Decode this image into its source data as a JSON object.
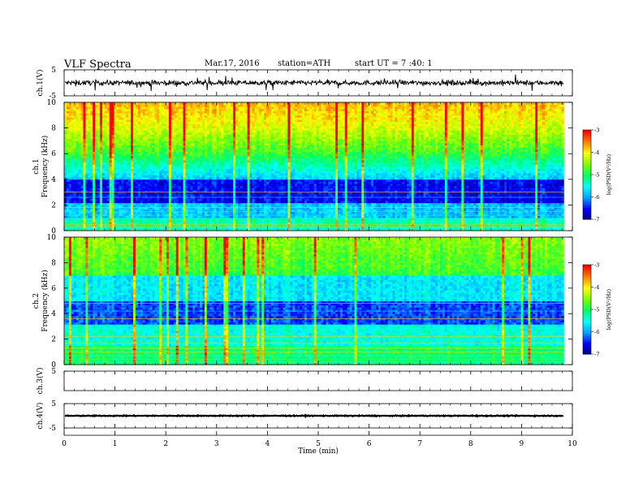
{
  "header": {
    "title": "VLF  Spectra",
    "date": "Mar.17, 2016",
    "station": "station=ATH",
    "start": "start  UT  =   7  :40: 1"
  },
  "chart_data": [
    {
      "id": "ch1_waveform",
      "type": "line",
      "ylabel": "ch.1(V)",
      "yticks": [
        "5",
        "-5"
      ],
      "ylim": [
        -5,
        5
      ],
      "baseline": 0,
      "color": "#000000"
    },
    {
      "id": "ch1_spectrogram",
      "type": "heatmap",
      "ylabel_line1": "ch.1",
      "ylabel_line2": "Frequency (kHz)",
      "yticks": [
        "0",
        "2",
        "4",
        "6",
        "8",
        "10"
      ],
      "ylim": [
        0,
        10
      ],
      "colorbar": {
        "ticks": [
          "-3",
          "-4",
          "-5",
          "-6",
          "-7"
        ],
        "label": "log(PSD(V²/Hz)"
      }
    },
    {
      "id": "ch2_spectrogram",
      "type": "heatmap",
      "ylabel_line1": "ch.2",
      "ylabel_line2": "Frequency (kHz)",
      "yticks": [
        "0",
        "2",
        "4",
        "6",
        "8",
        "10"
      ],
      "ylim": [
        0,
        10
      ],
      "colorbar": {
        "ticks": [
          "-3",
          "-4",
          "-5",
          "-6",
          "-7"
        ],
        "label": "log(PSD(V²/Hz)"
      }
    },
    {
      "id": "ch3_waveform",
      "type": "line",
      "ylabel": "ch.3(V)",
      "yticks": [
        "5"
      ],
      "ylim": [
        -5,
        5
      ]
    },
    {
      "id": "ch4_waveform",
      "type": "line",
      "ylabel": "ch.4(V)",
      "yticks": [
        "5",
        "-5"
      ],
      "ylim": [
        -5,
        5
      ],
      "baseline": 0,
      "color": "#000000"
    }
  ],
  "xaxis": {
    "label": "Time (min)",
    "ticks": [
      "0",
      "1",
      "2",
      "3",
      "4",
      "5",
      "6",
      "7",
      "8",
      "9",
      "10"
    ],
    "xlim": [
      0,
      10
    ],
    "data_end": 9.83
  },
  "colors": {
    "colormap": [
      "#000080",
      "#0000ff",
      "#00a0ff",
      "#00ffff",
      "#00ff60",
      "#80ff00",
      "#ffff00",
      "#ff8000",
      "#ff0000",
      "#ffffff"
    ]
  }
}
